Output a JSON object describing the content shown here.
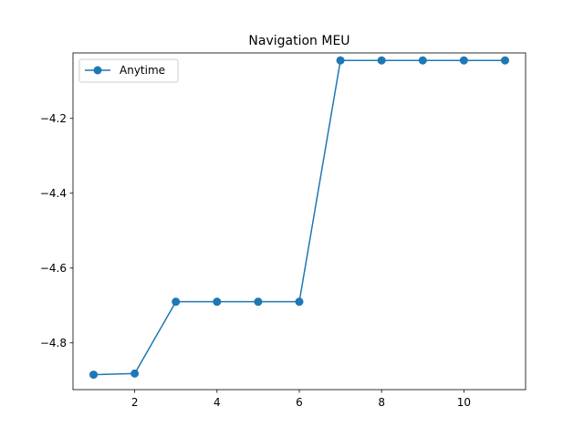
{
  "chart_data": {
    "type": "line",
    "title": "Navigation MEU",
    "xlabel": "",
    "ylabel": "",
    "xlim": [
      0.5,
      11.5
    ],
    "ylim": [
      -4.925,
      -4.025
    ],
    "xticks": [
      2,
      4,
      6,
      8,
      10
    ],
    "yticks": [
      -4.8,
      -4.6,
      -4.4,
      -4.2
    ],
    "grid": false,
    "legend_position": "upper left",
    "series": [
      {
        "name": "Anytime",
        "color": "#1f77b4",
        "marker": "circle",
        "x": [
          1,
          2,
          3,
          4,
          5,
          6,
          7,
          8,
          9,
          10,
          11
        ],
        "y": [
          -4.885,
          -4.882,
          -4.69,
          -4.69,
          -4.69,
          -4.69,
          -4.045,
          -4.045,
          -4.045,
          -4.045,
          -4.045
        ]
      }
    ]
  }
}
